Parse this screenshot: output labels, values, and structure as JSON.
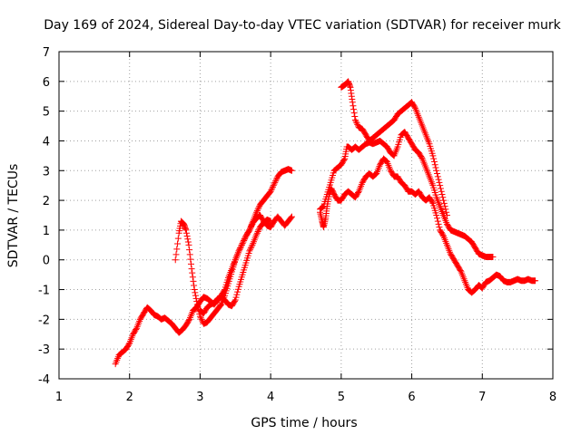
{
  "chart_data": {
    "type": "scatter",
    "title": "Day 169 of 2024, Sidereal Day-to-day VTEC variation (SDTVAR) for receiver murk",
    "xlabel": "GPS time / hours",
    "ylabel": "SDTVAR / TECUs",
    "xlim": [
      1,
      8
    ],
    "ylim": [
      -4,
      7
    ],
    "x_ticks": [
      "1",
      "2",
      "3",
      "4",
      "5",
      "6",
      "7",
      "8"
    ],
    "y_ticks": [
      "-4",
      "-3",
      "-2",
      "-1",
      "0",
      "1",
      "2",
      "3",
      "4",
      "5",
      "6",
      "7"
    ],
    "grid": true,
    "marker": "+",
    "color": "#ff0000",
    "series": [
      {
        "x": [
          1.8,
          1.85,
          1.9,
          1.95,
          2.0,
          2.05,
          2.1,
          2.15,
          2.2,
          2.25,
          2.3,
          2.35,
          2.4,
          2.45,
          2.5,
          2.55,
          2.6,
          2.65,
          2.7,
          2.75,
          2.8,
          2.85,
          2.9,
          2.95,
          3.0,
          3.05,
          3.1,
          3.15,
          3.2,
          3.25,
          3.3,
          3.35,
          3.4,
          3.45,
          3.5,
          3.55,
          3.6,
          3.65,
          3.7,
          3.75,
          3.8,
          3.85,
          3.9,
          3.95,
          4.0,
          4.05,
          4.1,
          4.15,
          4.2,
          4.25,
          4.3
        ],
        "y": [
          -3.5,
          -3.2,
          -3.1,
          -3.0,
          -2.8,
          -2.5,
          -2.3,
          -2.0,
          -1.8,
          -1.6,
          -1.7,
          -1.85,
          -1.9,
          -2.0,
          -1.95,
          -2.05,
          -2.15,
          -2.3,
          -2.45,
          -2.35,
          -2.2,
          -2.0,
          -1.7,
          -1.6,
          -1.4,
          -1.25,
          -1.3,
          -1.4,
          -1.5,
          -1.35,
          -1.2,
          -1.0,
          -0.6,
          -0.3,
          0.0,
          0.3,
          0.55,
          0.8,
          1.0,
          1.25,
          1.4,
          1.5,
          1.3,
          1.15,
          1.1,
          1.3,
          1.45,
          1.3,
          1.15,
          1.3,
          1.45
        ]
      },
      {
        "x": [
          2.65,
          2.7,
          2.73,
          2.77,
          2.8,
          2.84,
          2.88,
          2.92,
          2.96,
          3.0,
          3.05,
          3.1,
          3.15,
          3.2,
          3.25,
          3.3,
          3.35,
          3.4,
          3.45,
          3.5,
          3.55,
          3.6,
          3.65,
          3.7,
          3.75,
          3.8,
          3.85,
          3.9,
          3.95,
          4.0,
          4.05,
          4.1,
          4.15,
          4.2,
          4.25,
          4.3
        ],
        "y": [
          0.0,
          0.9,
          1.3,
          1.2,
          1.0,
          0.5,
          -0.3,
          -1.0,
          -1.5,
          -1.9,
          -2.15,
          -2.1,
          -1.95,
          -1.8,
          -1.65,
          -1.5,
          -1.2,
          -0.8,
          -0.4,
          0.0,
          0.3,
          0.55,
          0.8,
          1.0,
          1.3,
          1.6,
          1.85,
          2.0,
          2.15,
          2.3,
          2.55,
          2.8,
          2.95,
          3.0,
          3.05,
          3.0
        ]
      },
      {
        "x": [
          3.0,
          3.05,
          3.1,
          3.15,
          3.2,
          3.25,
          3.3,
          3.35,
          3.4,
          3.45,
          3.5,
          3.55,
          3.6,
          3.65,
          3.7,
          3.75,
          3.8,
          3.85,
          3.9,
          3.95,
          4.0
        ],
        "y": [
          -1.7,
          -1.8,
          -1.6,
          -1.5,
          -1.45,
          -1.3,
          -1.25,
          -1.35,
          -1.5,
          -1.55,
          -1.35,
          -0.9,
          -0.5,
          -0.1,
          0.3,
          0.55,
          0.85,
          1.1,
          1.25,
          1.35,
          1.3
        ]
      },
      {
        "x": [
          4.7,
          4.73,
          4.75,
          4.78,
          4.8,
          4.83,
          4.86,
          4.9,
          4.95,
          5.0,
          5.05,
          5.1,
          5.15,
          5.2,
          5.25,
          5.3,
          5.35,
          5.4,
          5.45,
          5.5,
          5.55,
          5.6,
          5.65,
          5.7,
          5.75,
          5.8,
          5.85,
          5.9,
          5.95,
          6.0,
          6.05,
          6.1,
          6.15,
          6.2,
          6.25,
          6.3,
          6.35,
          6.4,
          6.45,
          6.5,
          6.55,
          6.6,
          6.65,
          6.7,
          6.75,
          6.8,
          6.85,
          6.9,
          6.95,
          7.0,
          7.05,
          7.1,
          7.15,
          7.2,
          7.25,
          7.3,
          7.35,
          7.4,
          7.45,
          7.5,
          7.55,
          7.6,
          7.65,
          7.7,
          7.75
        ],
        "y": [
          1.6,
          1.3,
          1.1,
          1.4,
          1.8,
          2.2,
          2.4,
          2.2,
          2.0,
          2.0,
          2.2,
          2.3,
          2.2,
          2.1,
          2.3,
          2.6,
          2.8,
          2.9,
          2.8,
          2.9,
          3.2,
          3.4,
          3.3,
          3.0,
          2.8,
          2.8,
          2.6,
          2.5,
          2.3,
          2.3,
          2.2,
          2.3,
          2.1,
          2.0,
          2.1,
          1.9,
          1.5,
          1.0,
          0.8,
          0.5,
          0.2,
          0.0,
          -0.2,
          -0.4,
          -0.7,
          -1.0,
          -1.1,
          -1.0,
          -0.85,
          -0.95,
          -0.75,
          -0.7,
          -0.6,
          -0.5,
          -0.55,
          -0.7,
          -0.75,
          -0.75,
          -0.7,
          -0.65,
          -0.7,
          -0.7,
          -0.65,
          -0.7,
          -0.7
        ]
      },
      {
        "x": [
          4.7,
          4.75,
          4.8,
          4.85,
          4.9,
          4.95,
          5.0,
          5.05,
          5.08,
          5.1,
          5.15,
          5.2,
          5.25,
          5.3,
          5.35,
          5.4,
          5.45,
          5.5,
          5.55,
          5.6,
          5.65,
          5.7,
          5.75,
          5.8,
          5.85,
          5.9,
          5.95,
          6.0,
          6.05,
          6.1,
          6.15,
          6.2,
          6.25,
          6.3,
          6.35,
          6.4,
          6.45,
          6.5,
          6.55,
          6.6,
          6.65,
          6.7,
          6.75,
          6.8,
          6.85,
          6.9,
          6.95,
          7.0,
          7.05,
          7.1,
          7.15
        ],
        "y": [
          1.7,
          1.8,
          2.2,
          2.6,
          3.0,
          3.1,
          3.2,
          3.4,
          3.8,
          3.8,
          3.7,
          3.8,
          3.7,
          3.8,
          3.9,
          3.95,
          3.9,
          3.95,
          4.0,
          3.9,
          3.8,
          3.6,
          3.5,
          3.8,
          4.2,
          4.3,
          4.1,
          3.9,
          3.7,
          3.6,
          3.4,
          3.1,
          2.8,
          2.5,
          2.1,
          1.8,
          1.5,
          1.2,
          1.0,
          0.95,
          0.9,
          0.85,
          0.8,
          0.7,
          0.6,
          0.4,
          0.2,
          0.15,
          0.1,
          0.1,
          0.1
        ]
      },
      {
        "x": [
          5.0,
          5.03,
          5.06,
          5.1,
          5.13,
          5.16,
          5.2,
          5.25,
          5.3,
          5.35,
          5.4,
          5.45,
          5.5,
          5.55,
          5.6,
          5.65,
          5.7,
          5.75,
          5.8,
          5.85,
          5.9,
          5.95,
          6.0,
          6.05,
          6.1,
          6.15,
          6.2,
          6.25,
          6.3,
          6.35,
          6.4,
          6.45,
          6.5
        ],
        "y": [
          5.8,
          5.85,
          5.9,
          6.0,
          5.8,
          5.3,
          4.7,
          4.45,
          4.4,
          4.2,
          4.0,
          4.1,
          4.2,
          4.3,
          4.4,
          4.5,
          4.6,
          4.7,
          4.9,
          5.0,
          5.1,
          5.2,
          5.3,
          5.1,
          4.8,
          4.5,
          4.2,
          3.9,
          3.5,
          3.0,
          2.5,
          2.0,
          1.5
        ]
      }
    ]
  }
}
